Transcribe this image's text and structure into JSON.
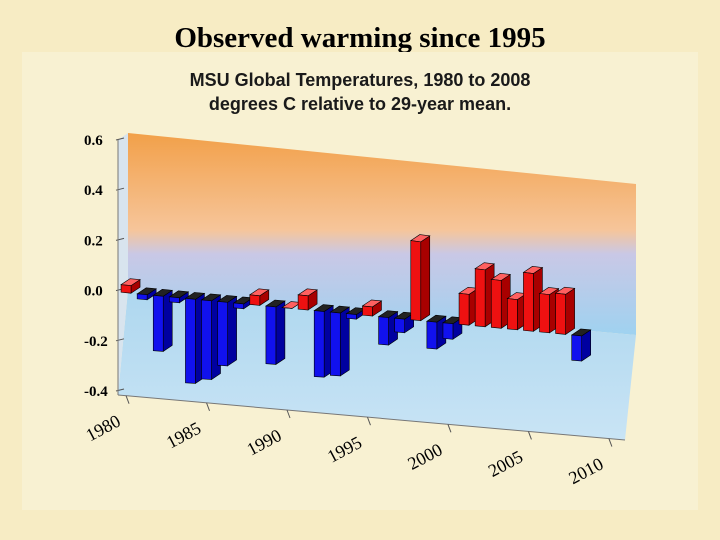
{
  "slide": {
    "title": "Observed warming since 1995"
  },
  "chart_data": {
    "type": "bar",
    "title": "MSU Global Temperatures, 1980 to 2008",
    "subtitle": "degrees C relative to 29-year mean.",
    "xlabel": "",
    "ylabel": "",
    "ylim": [
      -0.4,
      0.6
    ],
    "yticks": [
      "0.6",
      "0.4",
      "0.2",
      "0.0",
      "-0.2",
      "-0.4"
    ],
    "xticks": [
      "1980",
      "1985",
      "1990",
      "1995",
      "2000",
      "2005",
      "2010"
    ],
    "categories": [
      1980,
      1981,
      1982,
      1983,
      1984,
      1985,
      1986,
      1987,
      1988,
      1989,
      1990,
      1991,
      1992,
      1993,
      1994,
      1995,
      1996,
      1997,
      1998,
      1999,
      2000,
      2001,
      2002,
      2003,
      2004,
      2005,
      2006,
      2007,
      2008
    ],
    "values": [
      0.03,
      -0.02,
      -0.22,
      -0.02,
      -0.34,
      -0.32,
      -0.26,
      -0.02,
      0.04,
      -0.24,
      0.0,
      0.06,
      -0.28,
      -0.27,
      -0.02,
      0.04,
      -0.12,
      -0.06,
      0.35,
      -0.12,
      -0.07,
      0.14,
      0.26,
      0.22,
      0.14,
      0.27,
      0.18,
      0.19,
      -0.12
    ],
    "colors": {
      "positive": "#ee1111",
      "negative": "#1111ee",
      "bg_top": "#f2a049",
      "bg_bottom": "#9fd2f0"
    },
    "grid": false,
    "legend": "none"
  }
}
